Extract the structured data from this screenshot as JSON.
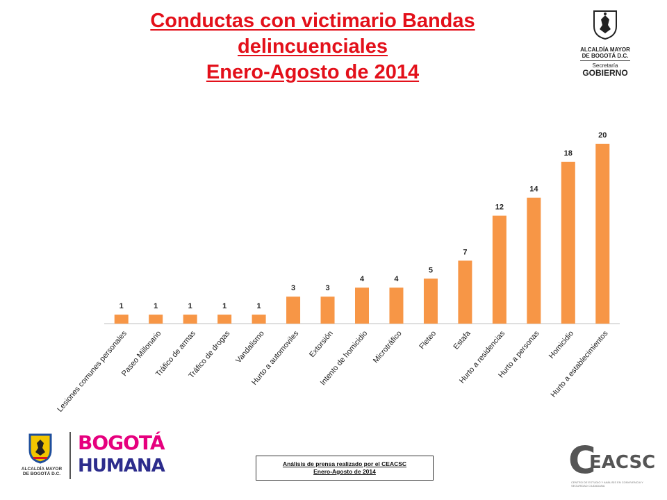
{
  "header": {
    "title_lines": [
      "Conductas con victimario Bandas",
      "delincuenciales",
      "Enero-Agosto de 2014"
    ]
  },
  "logo_top": {
    "line1": "ALCALDÍA MAYOR",
    "line2": "DE BOGOTÁ D.C.",
    "line3": "Secretaría",
    "line4": "GOBIERNO"
  },
  "chart_data": {
    "type": "bar",
    "title": "Conductas con victimario Bandas delincuenciales Enero-Agosto de 2014",
    "categories": [
      "Lesiones comunes personales",
      "Paseo Millonario",
      "Tráfico de armas",
      "Tráfico de drogas",
      "Vandalismo",
      "Hurto a automoviles",
      "Extorsión",
      "Intento de homicidio",
      "Microtráfico",
      "Fleteo",
      "Estafa",
      "Hurto a residencias",
      "Hurto a personas",
      "Homicidio",
      "Hurto a establecimientos"
    ],
    "values": [
      1,
      1,
      1,
      1,
      1,
      3,
      3,
      4,
      4,
      5,
      7,
      12,
      14,
      18,
      20
    ],
    "xlabel": "",
    "ylabel": "",
    "ylim": [
      0,
      20
    ],
    "grid": false,
    "bar_color": "#f79646",
    "data_labels": true
  },
  "footer": {
    "logo_caption_1": "ALCALDÍA MAYOR",
    "logo_caption_2": "DE BOGOTÁ D.C.",
    "brand_top": "BOGOTÁ",
    "brand_bottom": "HUMANA",
    "source_line1": "Análisis de prensa realizado por el CEACSC",
    "source_line2": "Enero-Agosto de 2014",
    "ceacsc_big": "C",
    "ceacsc_rest": "EACSC",
    "ceacsc_sub": "CENTRO DE ESTUDIO Y ANÁLISIS EN CONVIVENCIA Y SEGURIDAD CIUDADANA"
  }
}
